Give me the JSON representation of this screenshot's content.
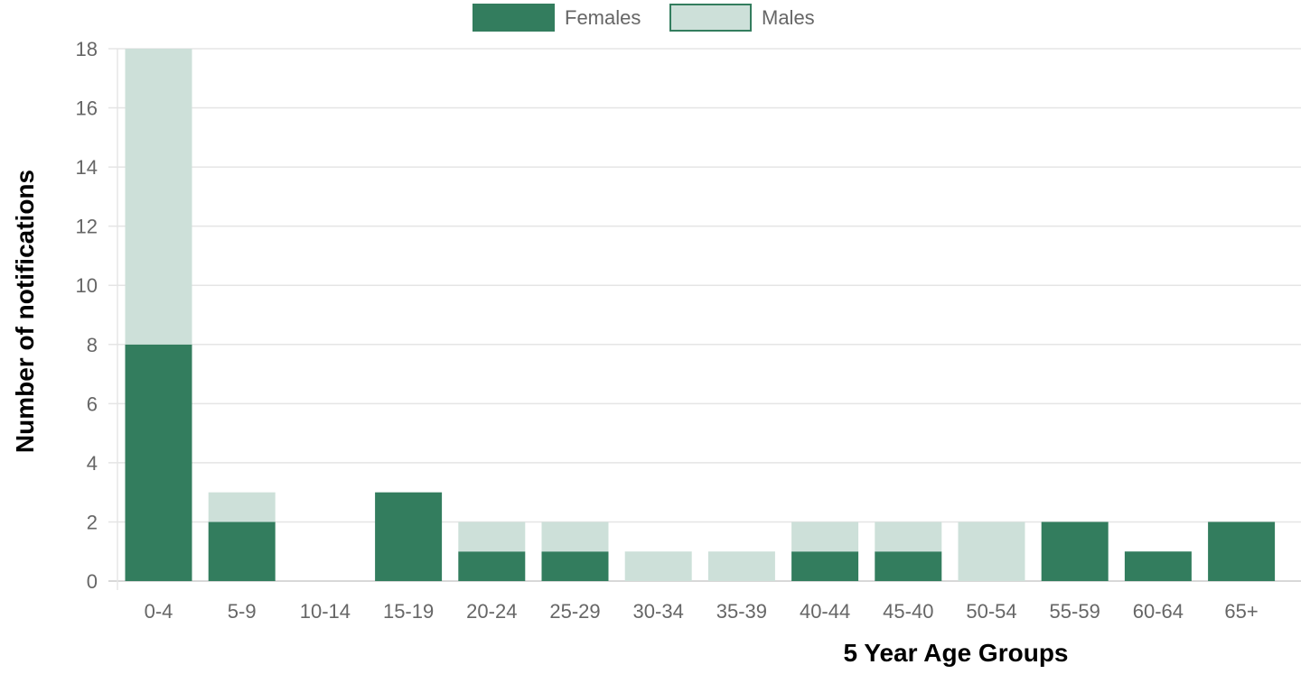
{
  "chart_data": {
    "type": "bar",
    "stacked": true,
    "categories": [
      "0-4",
      "5-9",
      "10-14",
      "15-19",
      "20-24",
      "25-29",
      "30-34",
      "35-39",
      "40-44",
      "45-40",
      "50-54",
      "55-59",
      "60-64",
      "65+"
    ],
    "series": [
      {
        "name": "Females",
        "values": [
          8,
          2,
          0,
          3,
          1,
          1,
          0,
          0,
          1,
          1,
          0,
          2,
          1,
          2
        ],
        "color": "#337d5e"
      },
      {
        "name": "Males",
        "values": [
          10,
          1,
          0,
          0,
          1,
          1,
          1,
          1,
          1,
          1,
          2,
          0,
          0,
          0
        ],
        "color": "#cde0d9"
      }
    ],
    "title": "",
    "xlabel": "5 Year Age Groups",
    "ylabel": "Number of notifications",
    "ylim": [
      0,
      18
    ],
    "yticks": [
      "0",
      "2",
      "4",
      "6",
      "8",
      "10",
      "12",
      "14",
      "16",
      "18"
    ],
    "grid": true,
    "legend_position": "top-center"
  }
}
